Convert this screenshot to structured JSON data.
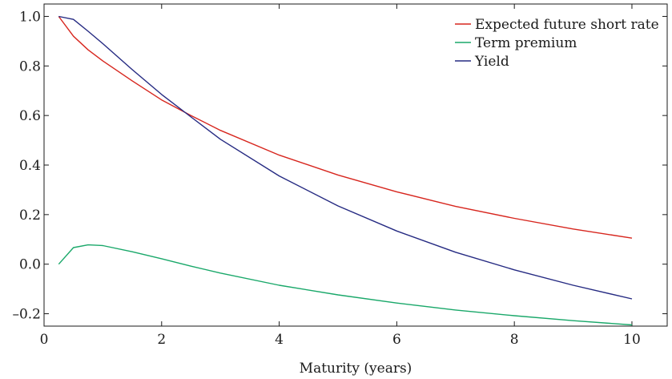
{
  "chart_data": {
    "type": "line",
    "title": "",
    "xlabel": "Maturity (years)",
    "ylabel": "",
    "xlim": [
      0,
      10.6
    ],
    "ylim": [
      -0.25,
      1.05
    ],
    "xticks": [
      0,
      2,
      4,
      6,
      8,
      10
    ],
    "yticks": [
      -0.2,
      0.0,
      0.2,
      0.4,
      0.6,
      0.8,
      1.0
    ],
    "ytick_labels": [
      "–0.2",
      "0.0",
      "0.2",
      "0.4",
      "0.6",
      "0.8",
      "1.0"
    ],
    "grid": false,
    "legend_position": "top-right",
    "series": [
      {
        "name": "Expected future short rate",
        "color": "#d7261e",
        "x": [
          0.25,
          0.5,
          0.75,
          1,
          1.5,
          2,
          2.5,
          3,
          4,
          5,
          6,
          7,
          8,
          9,
          10
        ],
        "values": [
          1.0,
          0.92,
          0.865,
          0.82,
          0.74,
          0.663,
          0.6,
          0.54,
          0.44,
          0.36,
          0.292,
          0.233,
          0.185,
          0.142,
          0.105
        ]
      },
      {
        "name": "Term premium",
        "color": "#1aa86a",
        "x": [
          0.25,
          0.5,
          0.75,
          1,
          1.5,
          2,
          2.5,
          3,
          4,
          5,
          6,
          7,
          8,
          9,
          10
        ],
        "values": [
          0.0,
          0.067,
          0.078,
          0.075,
          0.05,
          0.022,
          -0.008,
          -0.036,
          -0.085,
          -0.124,
          -0.157,
          -0.185,
          -0.208,
          -0.228,
          -0.245
        ]
      },
      {
        "name": "Yield",
        "color": "#252a82",
        "x": [
          0.25,
          0.5,
          0.75,
          1,
          1.5,
          2,
          2.5,
          3,
          4,
          5,
          6,
          7,
          8,
          9,
          10
        ],
        "values": [
          1.0,
          0.988,
          0.94,
          0.89,
          0.785,
          0.685,
          0.594,
          0.504,
          0.356,
          0.235,
          0.134,
          0.048,
          -0.023,
          -0.085,
          -0.14
        ]
      }
    ]
  }
}
